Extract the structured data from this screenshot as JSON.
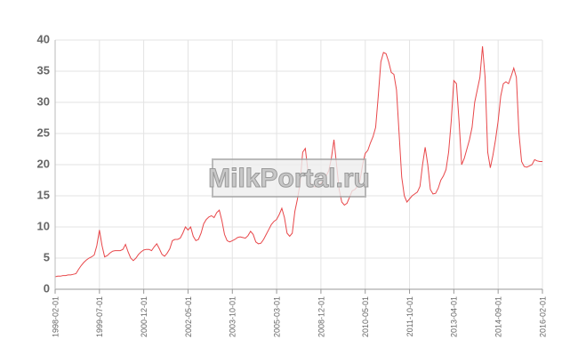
{
  "chart_data": {
    "type": "line",
    "watermark": "MilkPortal.ru",
    "categories": [
      "1998-02-01",
      null,
      null,
      null,
      null,
      null,
      null,
      null,
      null,
      null,
      null,
      null,
      null,
      null,
      null,
      null,
      null,
      "1999-07-01",
      null,
      null,
      null,
      null,
      null,
      null,
      null,
      null,
      null,
      null,
      null,
      null,
      null,
      null,
      null,
      null,
      "2000-12-01",
      null,
      null,
      null,
      null,
      null,
      null,
      null,
      null,
      null,
      null,
      null,
      null,
      null,
      null,
      null,
      null,
      "2002-05-01",
      null,
      null,
      null,
      null,
      null,
      null,
      null,
      null,
      null,
      null,
      null,
      null,
      null,
      null,
      null,
      null,
      "2003-10-01",
      null,
      null,
      null,
      null,
      null,
      null,
      null,
      null,
      null,
      null,
      null,
      null,
      null,
      null,
      null,
      null,
      "2005-03-01",
      null,
      null,
      null,
      null,
      null,
      null,
      null,
      null,
      null,
      null,
      null,
      null,
      null,
      null,
      null,
      null,
      "2008-12-01",
      null,
      null,
      null,
      null,
      null,
      null,
      null,
      null,
      null,
      null,
      null,
      null,
      null,
      null,
      null,
      null,
      "2010-05-01",
      null,
      null,
      null,
      null,
      null,
      null,
      null,
      null,
      null,
      null,
      null,
      null,
      null,
      null,
      null,
      null,
      "2011-10-01",
      null,
      null,
      null,
      null,
      null,
      null,
      null,
      null,
      null,
      null,
      null,
      null,
      null,
      null,
      null,
      null,
      "2013-04-01",
      null,
      null,
      null,
      null,
      null,
      null,
      null,
      null,
      null,
      null,
      null,
      null,
      null,
      null,
      null,
      null,
      "2014-09-01",
      null,
      null,
      null,
      null,
      null,
      null,
      null,
      null,
      null,
      null,
      null,
      null,
      null,
      null,
      null,
      null,
      "2016-02-01"
    ],
    "series": [
      {
        "color": "#e8474a",
        "values": [
          2.0,
          2.1,
          2.1,
          2.2,
          2.2,
          2.3,
          2.3,
          2.4,
          2.5,
          3.2,
          3.8,
          4.3,
          4.7,
          5.0,
          5.2,
          5.5,
          7.0,
          9.5,
          7.0,
          5.2,
          5.4,
          5.8,
          6.1,
          6.2,
          6.2,
          6.2,
          6.4,
          7.2,
          6.0,
          5.0,
          4.6,
          5.0,
          5.6,
          6.0,
          6.3,
          6.4,
          6.4,
          6.2,
          6.8,
          7.3,
          6.5,
          5.6,
          5.3,
          5.8,
          6.5,
          7.8,
          8.0,
          8.0,
          8.2,
          9.0,
          10.0,
          9.5,
          10.0,
          8.5,
          7.8,
          8.0,
          9.0,
          10.5,
          11.2,
          11.6,
          11.8,
          11.5,
          12.3,
          12.7,
          11.0,
          8.8,
          7.8,
          7.6,
          7.8,
          8.0,
          8.3,
          8.4,
          8.3,
          8.2,
          8.6,
          9.3,
          8.8,
          7.6,
          7.3,
          7.4,
          8.0,
          8.8,
          9.6,
          10.4,
          10.9,
          11.2,
          12.0,
          13.0,
          11.5,
          9.0,
          8.5,
          9.0,
          12.5,
          14.5,
          17.0,
          22.0,
          22.6,
          19.0,
          17.0,
          16.5,
          16.4,
          16.8,
          17.0,
          17.5,
          18.2,
          19.0,
          21.0,
          24.0,
          20.0,
          16.0,
          14.0,
          13.5,
          13.8,
          14.8,
          15.8,
          16.0,
          16.5,
          17.5,
          20.0,
          21.8,
          22.3,
          23.5,
          24.5,
          26.0,
          31.0,
          36.5,
          38.0,
          37.8,
          36.5,
          34.8,
          34.5,
          32.0,
          25.0,
          18.0,
          15.0,
          14.0,
          14.5,
          15.0,
          15.3,
          15.6,
          16.5,
          20.0,
          22.8,
          20.0,
          16.0,
          15.3,
          15.4,
          16.2,
          17.5,
          18.2,
          19.2,
          22.0,
          27.0,
          33.5,
          33.0,
          27.0,
          20.0,
          21.0,
          22.5,
          24.0,
          26.0,
          30.0,
          32.0,
          34.0,
          39.0,
          34.0,
          22.0,
          19.5,
          21.5,
          24.0,
          27.0,
          31.0,
          33.0,
          33.3,
          33.0,
          34.2,
          35.5,
          34.0,
          25.0,
          20.5,
          19.7,
          19.6,
          19.8,
          20.0,
          20.8,
          20.6,
          20.5,
          20.5
        ]
      }
    ],
    "ylim": [
      0,
      40
    ],
    "yticks": [
      0,
      5,
      10,
      15,
      20,
      25,
      30,
      35,
      40
    ],
    "grid": true
  }
}
